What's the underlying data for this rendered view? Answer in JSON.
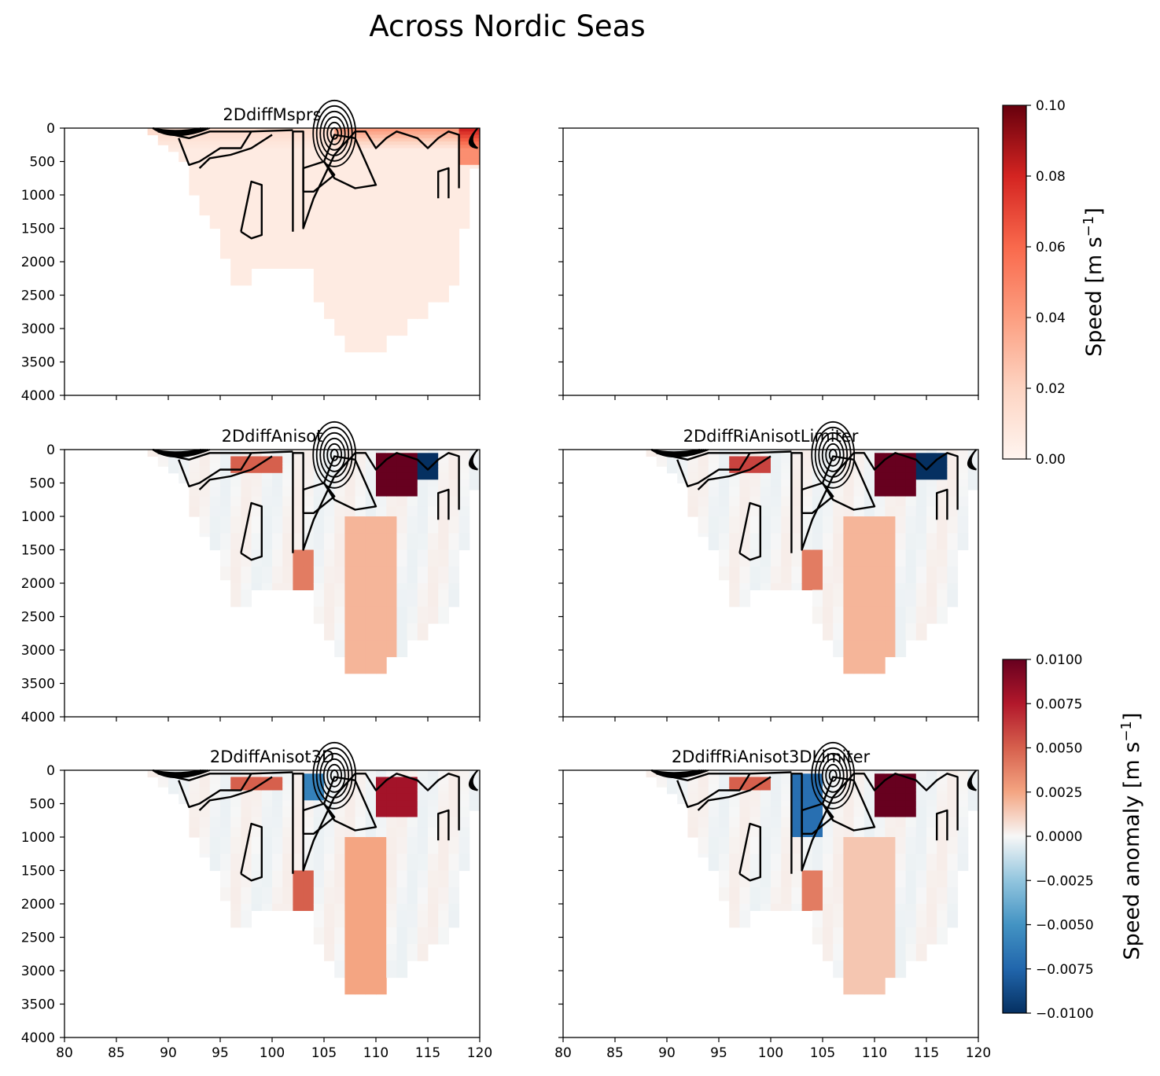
{
  "figure_title": "Across Nordic Seas",
  "chart_data": {
    "type": "heatmap",
    "title": "Across Nordic Seas",
    "xlim": [
      80,
      120
    ],
    "ylim": [
      4000,
      0
    ],
    "x_ticks": [
      "80",
      "85",
      "90",
      "95",
      "100",
      "105",
      "110",
      "115",
      "120"
    ],
    "y_ticks": [
      "0",
      "500",
      "1000",
      "1500",
      "2000",
      "2500",
      "3000",
      "3500",
      "4000"
    ],
    "section_column_max_depth": [
      {
        "x": 88,
        "depth": 100
      },
      {
        "x": 89,
        "depth": 250
      },
      {
        "x": 90,
        "depth": 350
      },
      {
        "x": 91,
        "depth": 500
      },
      {
        "x": 92,
        "depth": 1000
      },
      {
        "x": 93,
        "depth": 1300
      },
      {
        "x": 94,
        "depth": 1500
      },
      {
        "x": 95,
        "depth": 1950
      },
      {
        "x": 96,
        "depth": 2350
      },
      {
        "x": 97,
        "depth": 2350
      },
      {
        "x": 98,
        "depth": 2100
      },
      {
        "x": 99,
        "depth": 2100
      },
      {
        "x": 100,
        "depth": 2100
      },
      {
        "x": 101,
        "depth": 2100
      },
      {
        "x": 102,
        "depth": 2100
      },
      {
        "x": 103,
        "depth": 2100
      },
      {
        "x": 104,
        "depth": 2600
      },
      {
        "x": 105,
        "depth": 2850
      },
      {
        "x": 106,
        "depth": 3100
      },
      {
        "x": 107,
        "depth": 3350
      },
      {
        "x": 108,
        "depth": 3350
      },
      {
        "x": 109,
        "depth": 3350
      },
      {
        "x": 110,
        "depth": 3350
      },
      {
        "x": 111,
        "depth": 3100
      },
      {
        "x": 112,
        "depth": 3100
      },
      {
        "x": 113,
        "depth": 2850
      },
      {
        "x": 114,
        "depth": 2850
      },
      {
        "x": 115,
        "depth": 2600
      },
      {
        "x": 116,
        "depth": 2600
      },
      {
        "x": 117,
        "depth": 2350
      },
      {
        "x": 118,
        "depth": 1500
      },
      {
        "x": 119,
        "depth": 600
      }
    ],
    "panels": [
      {
        "id": "2DdiffMsprs",
        "title": "2DdiffMsprs",
        "field": "speed",
        "has_data": true,
        "colorbar": "speed",
        "surface_speed_max_x": [
          110,
          119
        ]
      },
      {
        "id": "empty",
        "title": "",
        "field": "none",
        "has_data": false
      },
      {
        "id": "2DdiffAnisot",
        "title": "2DdiffAnisot",
        "field": "speed_anomaly",
        "has_data": true,
        "colorbar": "anomaly",
        "anomalies": [
          {
            "x": [
              96,
              101
            ],
            "depth": [
              100,
              350
            ],
            "value": 0.005
          },
          {
            "x": [
              110,
              114
            ],
            "depth": [
              50,
              700
            ],
            "value": 0.01
          },
          {
            "x": [
              114,
              116
            ],
            "depth": [
              50,
              450
            ],
            "value": -0.01
          },
          {
            "x": [
              102,
              104
            ],
            "depth": [
              1400,
              2100
            ],
            "value": 0.004
          },
          {
            "x": [
              107,
              112
            ],
            "depth": [
              1000,
              3350
            ],
            "value": 0.002
          }
        ]
      },
      {
        "id": "2DdiffRiAnisotLimiter",
        "title": "2DdiffRiAnisotLimiter",
        "field": "speed_anomaly",
        "has_data": true,
        "colorbar": "anomaly",
        "anomalies": [
          {
            "x": [
              96,
              100
            ],
            "depth": [
              100,
              350
            ],
            "value": 0.006
          },
          {
            "x": [
              110,
              114
            ],
            "depth": [
              50,
              700
            ],
            "value": 0.01
          },
          {
            "x": [
              114,
              117
            ],
            "depth": [
              50,
              450
            ],
            "value": -0.01
          },
          {
            "x": [
              103,
              105
            ],
            "depth": [
              1400,
              2100
            ],
            "value": 0.004
          },
          {
            "x": [
              107,
              112
            ],
            "depth": [
              1000,
              3350
            ],
            "value": 0.002
          }
        ]
      },
      {
        "id": "2DdiffAnisot3D",
        "title": "2DdiffAnisot3D",
        "field": "speed_anomaly",
        "has_data": true,
        "colorbar": "anomaly",
        "anomalies": [
          {
            "x": [
              96,
              101
            ],
            "depth": [
              100,
              300
            ],
            "value": 0.005
          },
          {
            "x": [
              103,
              105
            ],
            "depth": [
              50,
              450
            ],
            "value": -0.006
          },
          {
            "x": [
              110,
              114
            ],
            "depth": [
              100,
              700
            ],
            "value": 0.008
          },
          {
            "x": [
              102,
              104
            ],
            "depth": [
              1400,
              2100
            ],
            "value": 0.005
          },
          {
            "x": [
              107,
              111
            ],
            "depth": [
              1000,
              3350
            ],
            "value": 0.0025
          }
        ]
      },
      {
        "id": "2DdiffRiAnisot3DLimiter",
        "title": "2DdiffRiAnisot3DLimiter",
        "field": "speed_anomaly",
        "has_data": true,
        "colorbar": "anomaly",
        "anomalies": [
          {
            "x": [
              102,
              105
            ],
            "depth": [
              50,
              900
            ],
            "value": -0.007
          },
          {
            "x": [
              110,
              114
            ],
            "depth": [
              50,
              700
            ],
            "value": 0.01
          },
          {
            "x": [
              96,
              100
            ],
            "depth": [
              100,
              300
            ],
            "value": 0.005
          },
          {
            "x": [
              103,
              105
            ],
            "depth": [
              1400,
              2100
            ],
            "value": 0.004
          },
          {
            "x": [
              107,
              112
            ],
            "depth": [
              1000,
              3350
            ],
            "value": 0.0015
          }
        ]
      }
    ],
    "colorbars": [
      {
        "id": "speed",
        "label": "Speed [m s",
        "label_sup": "−1",
        "label_end": "]",
        "cmap": "Reds",
        "vmin": 0.0,
        "vmax": 0.1,
        "tick_values": [
          0.0,
          0.02,
          0.04,
          0.06,
          0.08,
          0.1
        ],
        "tick_labels": [
          "0.00",
          "0.02",
          "0.04",
          "0.06",
          "0.08",
          "0.10"
        ]
      },
      {
        "id": "anomaly",
        "label": "Speed anomaly [m s",
        "label_sup": "−1",
        "label_end": "]",
        "cmap": "RdBu_r",
        "vmin": -0.01,
        "vmax": 0.01,
        "tick_values": [
          -0.01,
          -0.0075,
          -0.005,
          -0.0025,
          0.0,
          0.0025,
          0.005,
          0.0075,
          0.01
        ],
        "tick_labels": [
          "−0.0100",
          "−0.0075",
          "−0.0050",
          "−0.0025",
          "0.0000",
          "0.0025",
          "0.0050",
          "0.0075",
          "0.0100"
        ]
      }
    ],
    "contours": [
      {
        "name": "contour-left-loop",
        "points": [
          [
            97,
            1550
          ],
          [
            98,
            800
          ],
          [
            99,
            850
          ],
          [
            99,
            1600
          ],
          [
            98,
            1650
          ],
          [
            97,
            1550
          ]
        ]
      },
      {
        "name": "contour-long-loop",
        "points": [
          [
            102,
            1550
          ],
          [
            102,
            50
          ],
          [
            103,
            50
          ],
          [
            103,
            1500
          ],
          [
            104,
            1050
          ],
          [
            106,
            400
          ],
          [
            108,
            50
          ],
          [
            109,
            50
          ],
          [
            110,
            300
          ],
          [
            111,
            150
          ],
          [
            112,
            50
          ],
          [
            113,
            100
          ],
          [
            114,
            150
          ],
          [
            115,
            300
          ],
          [
            116,
            150
          ],
          [
            117,
            50
          ],
          [
            118,
            100
          ],
          [
            118,
            600
          ],
          [
            118,
            900
          ]
        ]
      },
      {
        "name": "contour-inner-loop",
        "points": [
          [
            103,
            950
          ],
          [
            103,
            600
          ],
          [
            105,
            500
          ],
          [
            106,
            700
          ],
          [
            104,
            950
          ],
          [
            103,
            950
          ]
        ]
      },
      {
        "name": "contour-mid-loop",
        "points": [
          [
            105,
            500
          ],
          [
            106,
            100
          ],
          [
            108,
            150
          ],
          [
            109,
            500
          ],
          [
            110,
            850
          ],
          [
            108,
            900
          ],
          [
            106,
            750
          ],
          [
            105,
            500
          ]
        ]
      },
      {
        "name": "contour-bump",
        "points": [
          [
            116,
            1050
          ],
          [
            116,
            650
          ],
          [
            117,
            600
          ],
          [
            117,
            1050
          ]
        ]
      },
      {
        "name": "contour-surface",
        "points": [
          [
            89,
            50
          ],
          [
            92,
            150
          ],
          [
            94,
            50
          ],
          [
            98,
            50
          ],
          [
            102,
            30
          ]
        ]
      },
      {
        "name": "contour-upper-left",
        "points": [
          [
            91,
            150
          ],
          [
            92,
            550
          ],
          [
            93,
            500
          ],
          [
            95,
            300
          ],
          [
            97,
            300
          ],
          [
            98,
            50
          ]
        ]
      },
      {
        "name": "contour-upper-left-2",
        "points": [
          [
            93,
            600
          ],
          [
            94,
            450
          ],
          [
            96,
            400
          ],
          [
            98,
            300
          ],
          [
            100,
            100
          ]
        ]
      }
    ]
  }
}
